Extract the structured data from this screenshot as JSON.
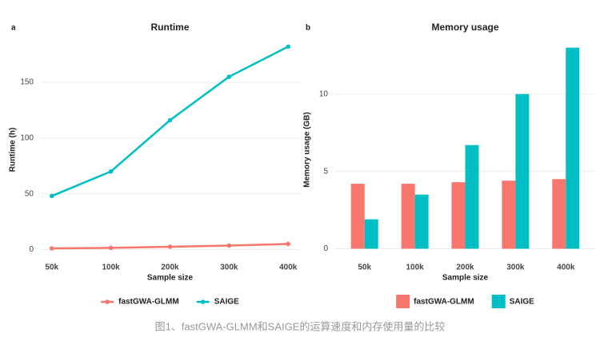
{
  "chart_data": [
    {
      "type": "line",
      "panel_label": "a",
      "title": "Runtime",
      "x_label": "Sample size",
      "y_label": "Runtime (h)",
      "categories": [
        "50k",
        "100k",
        "200k",
        "300k",
        "400k"
      ],
      "series": [
        {
          "name": "fastGWA-GLMM",
          "color": "#f8766d",
          "values": [
            1,
            1.5,
            2.5,
            3.5,
            5
          ]
        },
        {
          "name": "SAIGE",
          "color": "#00bfc4",
          "values": [
            48,
            70,
            116,
            155,
            182
          ]
        }
      ],
      "ylim": [
        -9,
        188
      ],
      "yticks": [
        0,
        50,
        100,
        150
      ],
      "grid": true,
      "legend": "bottom"
    },
    {
      "type": "bar",
      "panel_label": "b",
      "title": "Memory usage",
      "x_label": "Sample size",
      "y_label": "Memory usage (GB)",
      "categories": [
        "50k",
        "100k",
        "200k",
        "300k",
        "400k"
      ],
      "series": [
        {
          "name": "fastGWA-GLMM",
          "color": "#f8766d",
          "values": [
            4.2,
            4.2,
            4.3,
            4.4,
            4.5
          ]
        },
        {
          "name": "SAIGE",
          "color": "#00bfc4",
          "values": [
            1.9,
            3.5,
            6.7,
            10,
            13
          ]
        }
      ],
      "ylim": [
        -0.7,
        13.5
      ],
      "yticks": [
        0,
        5,
        10
      ],
      "grid": true,
      "legend": "bottom"
    }
  ],
  "caption": "图1、fastGWA-GLMM和SAIGE的运算速度和内存使用量的比较"
}
